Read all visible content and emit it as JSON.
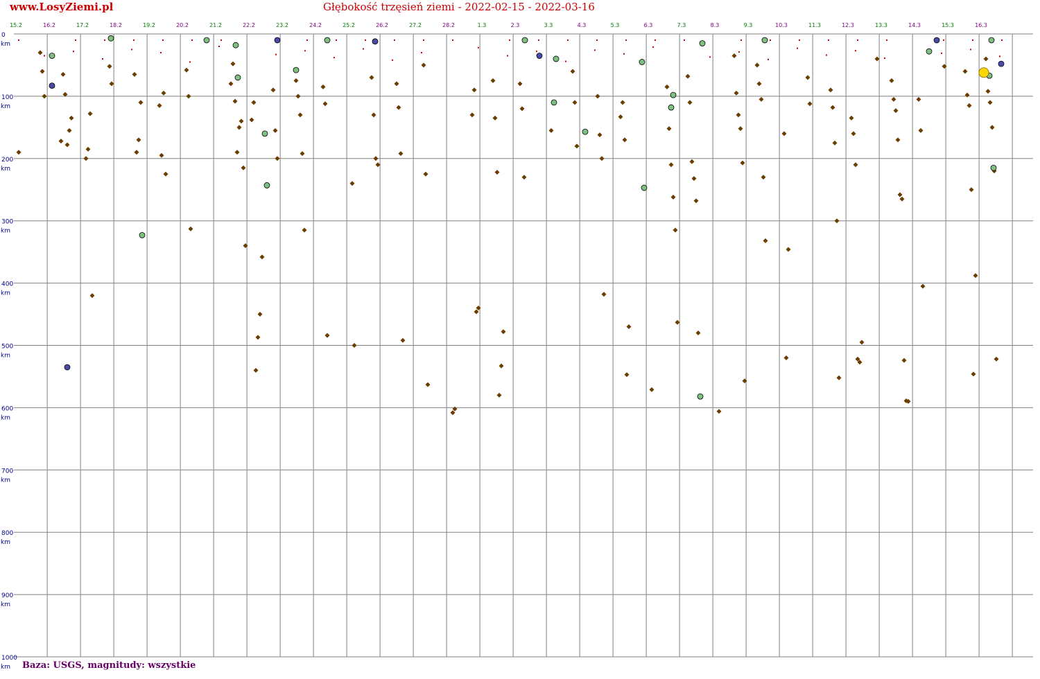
{
  "header": {
    "site": "www.LosyZiemi.pl",
    "title": "Głębokość trzęsień ziemi - 2022-02-15 - 2022-03-16"
  },
  "footer": {
    "note": "Baza: USGS, magnitudy: wszystkie"
  },
  "colors": {
    "title": "#cc0000",
    "footer": "#660066",
    "axis_label": "#00008b",
    "grid": "#808080",
    "tick_green": "#008000",
    "tick_purple": "#800080",
    "quake_small": "#cc0000",
    "quake_medium": "#6b3e00",
    "quake_m4": "#7fbf7f",
    "quake_m5": "#4a4aa8",
    "quake_m6": "#ffd700"
  },
  "chart_data": {
    "type": "scatter",
    "title": "Głębokość trzęsień ziemi - 2022-02-15 - 2022-03-16",
    "xlabel": "",
    "ylabel": "",
    "x_axis": {
      "type": "date",
      "ticks": [
        "15.2",
        "16.2",
        "17.2",
        "18.2",
        "19.2",
        "20.2",
        "21.2",
        "22.2",
        "23.2",
        "24.2",
        "25.2",
        "26.2",
        "27.2",
        "28.2",
        "1.3",
        "2.3",
        "3.3",
        "4.3",
        "5.3",
        "6.3",
        "7.3",
        "8.3",
        "9.3",
        "10.3",
        "11.3",
        "12.3",
        "13.3",
        "14.3",
        "15.3",
        "16.3"
      ],
      "tick_colors": [
        "green",
        "purple",
        "green",
        "purple",
        "green",
        "purple",
        "green",
        "purple",
        "green",
        "purple",
        "green",
        "purple",
        "green",
        "purple",
        "green",
        "purple",
        "green",
        "purple",
        "green",
        "purple",
        "green",
        "purple",
        "green",
        "purple",
        "green",
        "purple",
        "green",
        "purple",
        "green",
        "purple"
      ]
    },
    "y_axis": {
      "ticks": [
        0,
        100,
        200,
        300,
        400,
        500,
        600,
        700,
        800,
        900,
        1000
      ],
      "unit": "km",
      "ylim": [
        0,
        1000
      ],
      "inverted": true
    },
    "grid": true,
    "series": [
      {
        "marker": "large-circle",
        "color": "#ffd700",
        "points": [
          [
            "2022-03-16",
            62
          ]
        ]
      },
      {
        "marker": "circle",
        "color": "#4a4aa8",
        "points": [
          [
            "2022-02-16",
            83
          ],
          [
            "2022-02-22",
            10
          ],
          [
            "2022-02-25",
            12
          ],
          [
            "2022-03-02",
            35
          ],
          [
            "2022-03-14",
            10
          ],
          [
            "2022-03-16",
            48
          ],
          [
            "2022-02-16",
            535
          ]
        ]
      },
      {
        "marker": "circle",
        "color": "#7fbf7f",
        "points": [
          [
            "2022-02-16",
            35
          ],
          [
            "2022-02-17",
            7
          ],
          [
            "2022-02-18",
            323
          ],
          [
            "2022-02-20",
            10
          ],
          [
            "2022-02-21",
            70
          ],
          [
            "2022-02-21",
            18
          ],
          [
            "2022-02-22",
            243
          ],
          [
            "2022-02-22",
            160
          ],
          [
            "2022-02-23",
            58
          ],
          [
            "2022-02-24",
            10
          ],
          [
            "2022-03-02",
            10
          ],
          [
            "2022-03-03",
            40
          ],
          [
            "2022-03-03",
            110
          ],
          [
            "2022-03-04",
            157
          ],
          [
            "2022-03-05",
            247
          ],
          [
            "2022-03-05",
            45
          ],
          [
            "2022-03-06",
            98
          ],
          [
            "2022-03-06",
            118
          ],
          [
            "2022-03-07",
            15
          ],
          [
            "2022-03-07",
            582
          ],
          [
            "2022-03-09",
            10
          ],
          [
            "2022-03-14",
            28
          ],
          [
            "2022-03-16",
            215
          ],
          [
            "2022-03-16",
            10
          ],
          [
            "2022-03-16",
            67
          ]
        ]
      },
      {
        "marker": "diamond",
        "color": "#6b3e00",
        "points": [
          [
            "2022-02-15",
            190
          ],
          [
            "2022-02-15",
            100
          ],
          [
            "2022-02-15",
            60
          ],
          [
            "2022-02-15",
            30
          ],
          [
            "2022-02-16",
            135
          ],
          [
            "2022-02-16",
            155
          ],
          [
            "2022-02-16",
            178
          ],
          [
            "2022-02-16",
            97
          ],
          [
            "2022-02-16",
            65
          ],
          [
            "2022-02-16",
            172
          ],
          [
            "2022-02-17",
            420
          ],
          [
            "2022-02-17",
            128
          ],
          [
            "2022-02-17",
            185
          ],
          [
            "2022-02-17",
            200
          ],
          [
            "2022-02-17",
            80
          ],
          [
            "2022-02-17",
            52
          ],
          [
            "2022-02-18",
            110
          ],
          [
            "2022-02-18",
            170
          ],
          [
            "2022-02-18",
            190
          ],
          [
            "2022-02-18",
            65
          ],
          [
            "2022-02-19",
            225
          ],
          [
            "2022-02-19",
            95
          ],
          [
            "2022-02-19",
            195
          ],
          [
            "2022-02-19",
            115
          ],
          [
            "2022-02-20",
            313
          ],
          [
            "2022-02-20",
            100
          ],
          [
            "2022-02-20",
            58
          ],
          [
            "2022-02-21",
            340
          ],
          [
            "2022-02-21",
            215
          ],
          [
            "2022-02-21",
            140
          ],
          [
            "2022-02-21",
            150
          ],
          [
            "2022-02-21",
            190
          ],
          [
            "2022-02-21",
            108
          ],
          [
            "2022-02-21",
            48
          ],
          [
            "2022-02-21",
            80
          ],
          [
            "2022-02-22",
            358
          ],
          [
            "2022-02-22",
            450
          ],
          [
            "2022-02-22",
            487
          ],
          [
            "2022-02-22",
            540
          ],
          [
            "2022-02-22",
            110
          ],
          [
            "2022-02-22",
            138
          ],
          [
            "2022-02-22",
            200
          ],
          [
            "2022-02-22",
            155
          ],
          [
            "2022-02-22",
            90
          ],
          [
            "2022-02-23",
            315
          ],
          [
            "2022-02-23",
            192
          ],
          [
            "2022-02-23",
            130
          ],
          [
            "2022-02-23",
            100
          ],
          [
            "2022-02-23",
            75
          ],
          [
            "2022-02-24",
            484
          ],
          [
            "2022-02-24",
            112
          ],
          [
            "2022-02-24",
            85
          ],
          [
            "2022-02-25",
            500
          ],
          [
            "2022-02-25",
            240
          ],
          [
            "2022-02-25",
            210
          ],
          [
            "2022-02-25",
            200
          ],
          [
            "2022-02-25",
            130
          ],
          [
            "2022-02-25",
            70
          ],
          [
            "2022-02-26",
            492
          ],
          [
            "2022-02-26",
            192
          ],
          [
            "2022-02-26",
            118
          ],
          [
            "2022-02-26",
            80
          ],
          [
            "2022-02-27",
            563
          ],
          [
            "2022-02-27",
            225
          ],
          [
            "2022-02-27",
            50
          ],
          [
            "2022-02-28",
            602
          ],
          [
            "2022-02-28",
            608
          ],
          [
            "2022-02-28",
            440
          ],
          [
            "2022-02-28",
            446
          ],
          [
            "2022-02-28",
            90
          ],
          [
            "2022-02-28",
            130
          ],
          [
            "2022-03-01",
            478
          ],
          [
            "2022-03-01",
            533
          ],
          [
            "2022-03-01",
            580
          ],
          [
            "2022-03-01",
            222
          ],
          [
            "2022-03-01",
            135
          ],
          [
            "2022-03-01",
            75
          ],
          [
            "2022-03-02",
            230
          ],
          [
            "2022-03-02",
            120
          ],
          [
            "2022-03-02",
            80
          ],
          [
            "2022-03-03",
            155
          ],
          [
            "2022-03-03",
            180
          ],
          [
            "2022-03-03",
            110
          ],
          [
            "2022-03-03",
            60
          ],
          [
            "2022-03-04",
            418
          ],
          [
            "2022-03-04",
            200
          ],
          [
            "2022-03-04",
            162
          ],
          [
            "2022-03-04",
            100
          ],
          [
            "2022-03-05",
            470
          ],
          [
            "2022-03-05",
            547
          ],
          [
            "2022-03-05",
            170
          ],
          [
            "2022-03-05",
            110
          ],
          [
            "2022-03-05",
            133
          ],
          [
            "2022-03-06",
            571
          ],
          [
            "2022-03-06",
            463
          ],
          [
            "2022-03-06",
            315
          ],
          [
            "2022-03-06",
            262
          ],
          [
            "2022-03-06",
            210
          ],
          [
            "2022-03-06",
            152
          ],
          [
            "2022-03-06",
            85
          ],
          [
            "2022-03-07",
            480
          ],
          [
            "2022-03-07",
            268
          ],
          [
            "2022-03-07",
            232
          ],
          [
            "2022-03-07",
            205
          ],
          [
            "2022-03-07",
            110
          ],
          [
            "2022-03-07",
            68
          ],
          [
            "2022-03-08",
            606
          ],
          [
            "2022-03-08",
            557
          ],
          [
            "2022-03-08",
            207
          ],
          [
            "2022-03-08",
            152
          ],
          [
            "2022-03-08",
            130
          ],
          [
            "2022-03-08",
            95
          ],
          [
            "2022-03-08",
            35
          ],
          [
            "2022-03-09",
            332
          ],
          [
            "2022-03-09",
            230
          ],
          [
            "2022-03-09",
            105
          ],
          [
            "2022-03-09",
            80
          ],
          [
            "2022-03-09",
            50
          ],
          [
            "2022-03-10",
            346
          ],
          [
            "2022-03-10",
            520
          ],
          [
            "2022-03-10",
            160
          ],
          [
            "2022-03-10",
            112
          ],
          [
            "2022-03-10",
            70
          ],
          [
            "2022-03-11",
            552
          ],
          [
            "2022-03-11",
            300
          ],
          [
            "2022-03-11",
            175
          ],
          [
            "2022-03-11",
            118
          ],
          [
            "2022-03-11",
            90
          ],
          [
            "2022-03-12",
            495
          ],
          [
            "2022-03-12",
            527
          ],
          [
            "2022-03-12",
            522
          ],
          [
            "2022-03-12",
            210
          ],
          [
            "2022-03-12",
            160
          ],
          [
            "2022-03-12",
            135
          ],
          [
            "2022-03-12",
            40
          ],
          [
            "2022-03-13",
            590
          ],
          [
            "2022-03-13",
            589
          ],
          [
            "2022-03-13",
            524
          ],
          [
            "2022-03-13",
            265
          ],
          [
            "2022-03-13",
            258
          ],
          [
            "2022-03-13",
            170
          ],
          [
            "2022-03-13",
            123
          ],
          [
            "2022-03-13",
            105
          ],
          [
            "2022-03-13",
            75
          ],
          [
            "2022-03-14",
            405
          ],
          [
            "2022-03-14",
            155
          ],
          [
            "2022-03-14",
            105
          ],
          [
            "2022-03-14",
            52
          ],
          [
            "2022-03-15",
            388
          ],
          [
            "2022-03-15",
            546
          ],
          [
            "2022-03-15",
            250
          ],
          [
            "2022-03-15",
            115
          ],
          [
            "2022-03-15",
            98
          ],
          [
            "2022-03-15",
            60
          ],
          [
            "2022-03-16",
            522
          ],
          [
            "2022-03-16",
            220
          ],
          [
            "2022-03-16",
            150
          ],
          [
            "2022-03-16",
            110
          ],
          [
            "2022-03-16",
            92
          ],
          [
            "2022-03-16",
            40
          ]
        ]
      },
      {
        "marker": "small-dot",
        "color": "#cc0000",
        "points": [
          [
            "2022-02-15",
            10
          ],
          [
            "2022-02-15",
            35
          ],
          [
            "2022-02-16",
            10
          ],
          [
            "2022-02-16",
            28
          ],
          [
            "2022-02-17",
            10
          ],
          [
            "2022-02-17",
            40
          ],
          [
            "2022-02-18",
            10
          ],
          [
            "2022-02-18",
            25
          ],
          [
            "2022-02-19",
            10
          ],
          [
            "2022-02-19",
            30
          ],
          [
            "2022-02-20",
            10
          ],
          [
            "2022-02-20",
            45
          ],
          [
            "2022-02-21",
            10
          ],
          [
            "2022-02-21",
            20
          ],
          [
            "2022-02-22",
            10
          ],
          [
            "2022-02-22",
            33
          ],
          [
            "2022-02-23",
            10
          ],
          [
            "2022-02-23",
            27
          ],
          [
            "2022-02-24",
            10
          ],
          [
            "2022-02-24",
            38
          ],
          [
            "2022-02-25",
            10
          ],
          [
            "2022-02-25",
            24
          ],
          [
            "2022-02-26",
            10
          ],
          [
            "2022-02-26",
            42
          ],
          [
            "2022-02-27",
            10
          ],
          [
            "2022-02-27",
            30
          ],
          [
            "2022-02-28",
            10
          ],
          [
            "2022-02-28",
            22
          ],
          [
            "2022-03-01",
            10
          ],
          [
            "2022-03-01",
            35
          ],
          [
            "2022-03-02",
            10
          ],
          [
            "2022-03-02",
            28
          ],
          [
            "2022-03-03",
            10
          ],
          [
            "2022-03-03",
            44
          ],
          [
            "2022-03-04",
            10
          ],
          [
            "2022-03-04",
            26
          ],
          [
            "2022-03-05",
            10
          ],
          [
            "2022-03-05",
            32
          ],
          [
            "2022-03-06",
            10
          ],
          [
            "2022-03-06",
            21
          ],
          [
            "2022-03-07",
            10
          ],
          [
            "2022-03-07",
            37
          ],
          [
            "2022-03-08",
            10
          ],
          [
            "2022-03-08",
            29
          ],
          [
            "2022-03-09",
            10
          ],
          [
            "2022-03-09",
            41
          ],
          [
            "2022-03-10",
            10
          ],
          [
            "2022-03-10",
            23
          ],
          [
            "2022-03-11",
            10
          ],
          [
            "2022-03-11",
            34
          ],
          [
            "2022-03-12",
            10
          ],
          [
            "2022-03-12",
            27
          ],
          [
            "2022-03-13",
            10
          ],
          [
            "2022-03-13",
            39
          ],
          [
            "2022-03-14",
            10
          ],
          [
            "2022-03-14",
            31
          ],
          [
            "2022-03-15",
            10
          ],
          [
            "2022-03-15",
            25
          ],
          [
            "2022-03-16",
            10
          ],
          [
            "2022-03-16",
            36
          ]
        ]
      }
    ]
  }
}
